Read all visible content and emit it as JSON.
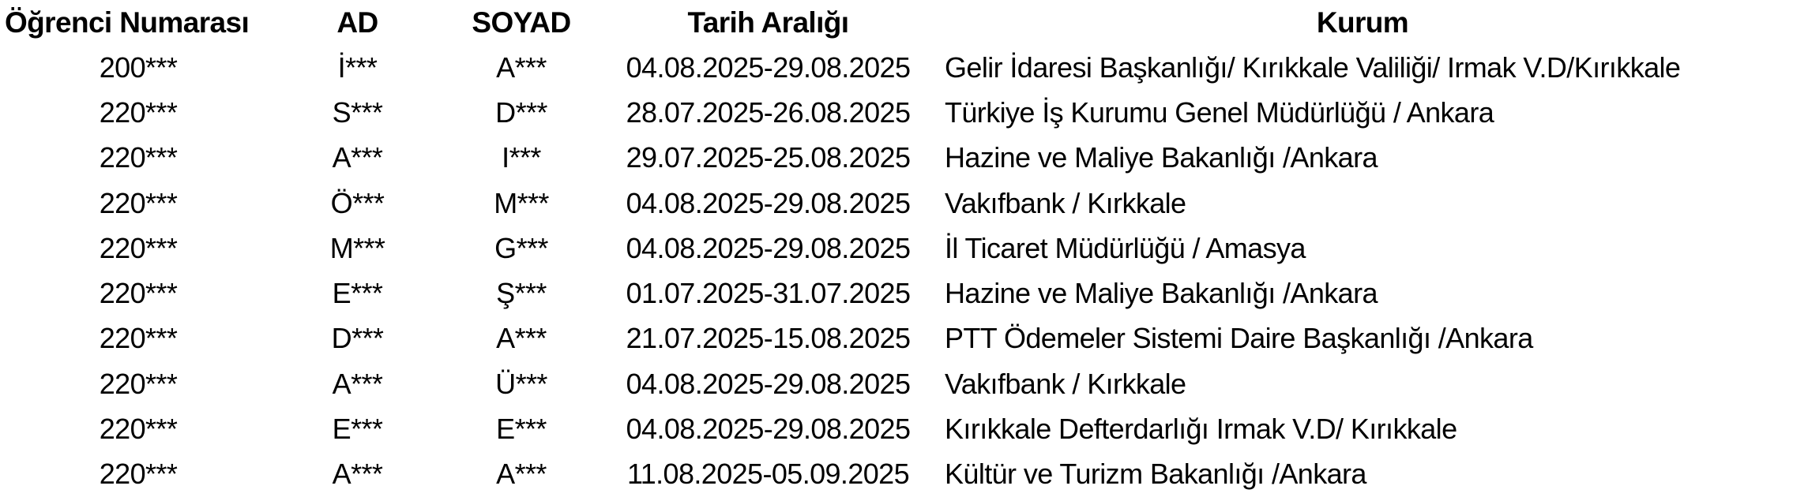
{
  "colors": {
    "text": "#000000",
    "background": "#ffffff"
  },
  "table": {
    "columns": [
      "Öğrenci Numarası",
      "AD",
      "SOYAD",
      "Tarih Aralığı",
      "Kurum"
    ],
    "rows": [
      {
        "ogrenci_numarasi": "200***",
        "ad": "İ***",
        "soyad": "A***",
        "tarih_araligi": "04.08.2025-29.08.2025",
        "kurum": "Gelir İdaresi Başkanlığı/ Kırıkkale Valiliği/ Irmak V.D/Kırıkkale"
      },
      {
        "ogrenci_numarasi": "220***",
        "ad": "S***",
        "soyad": "D***",
        "tarih_araligi": "28.07.2025-26.08.2025",
        "kurum": "Türkiye İş Kurumu Genel Müdürlüğü / Ankara"
      },
      {
        "ogrenci_numarasi": "220***",
        "ad": "A***",
        "soyad": "I***",
        "tarih_araligi": "29.07.2025-25.08.2025",
        "kurum": "Hazine ve Maliye Bakanlığı /Ankara"
      },
      {
        "ogrenci_numarasi": "220***",
        "ad": "Ö***",
        "soyad": "M***",
        "tarih_araligi": "04.08.2025-29.08.2025",
        "kurum": "Vakıfbank / Kırkkale"
      },
      {
        "ogrenci_numarasi": "220***",
        "ad": "M***",
        "soyad": "G***",
        "tarih_araligi": "04.08.2025-29.08.2025",
        "kurum": "İl Ticaret Müdürlüğü / Amasya"
      },
      {
        "ogrenci_numarasi": "220***",
        "ad": "E***",
        "soyad": "Ş***",
        "tarih_araligi": "01.07.2025-31.07.2025",
        "kurum": "Hazine ve Maliye Bakanlığı /Ankara"
      },
      {
        "ogrenci_numarasi": "220***",
        "ad": "D***",
        "soyad": "A***",
        "tarih_araligi": "21.07.2025-15.08.2025",
        "kurum": "PTT Ödemeler Sistemi Daire Başkanlığı /Ankara"
      },
      {
        "ogrenci_numarasi": "220***",
        "ad": "A***",
        "soyad": "Ü***",
        "tarih_araligi": "04.08.2025-29.08.2025",
        "kurum": "Vakıfbank / Kırkkale"
      },
      {
        "ogrenci_numarasi": "220***",
        "ad": "E***",
        "soyad": "E***",
        "tarih_araligi": "04.08.2025-29.08.2025",
        "kurum": "Kırıkkale Defterdarlığı Irmak V.D/ Kırıkkale"
      },
      {
        "ogrenci_numarasi": "220***",
        "ad": "A***",
        "soyad": "A***",
        "tarih_araligi": "11.08.2025-05.09.2025",
        "kurum": "Kültür ve Turizm Bakanlığı /Ankara"
      }
    ]
  }
}
